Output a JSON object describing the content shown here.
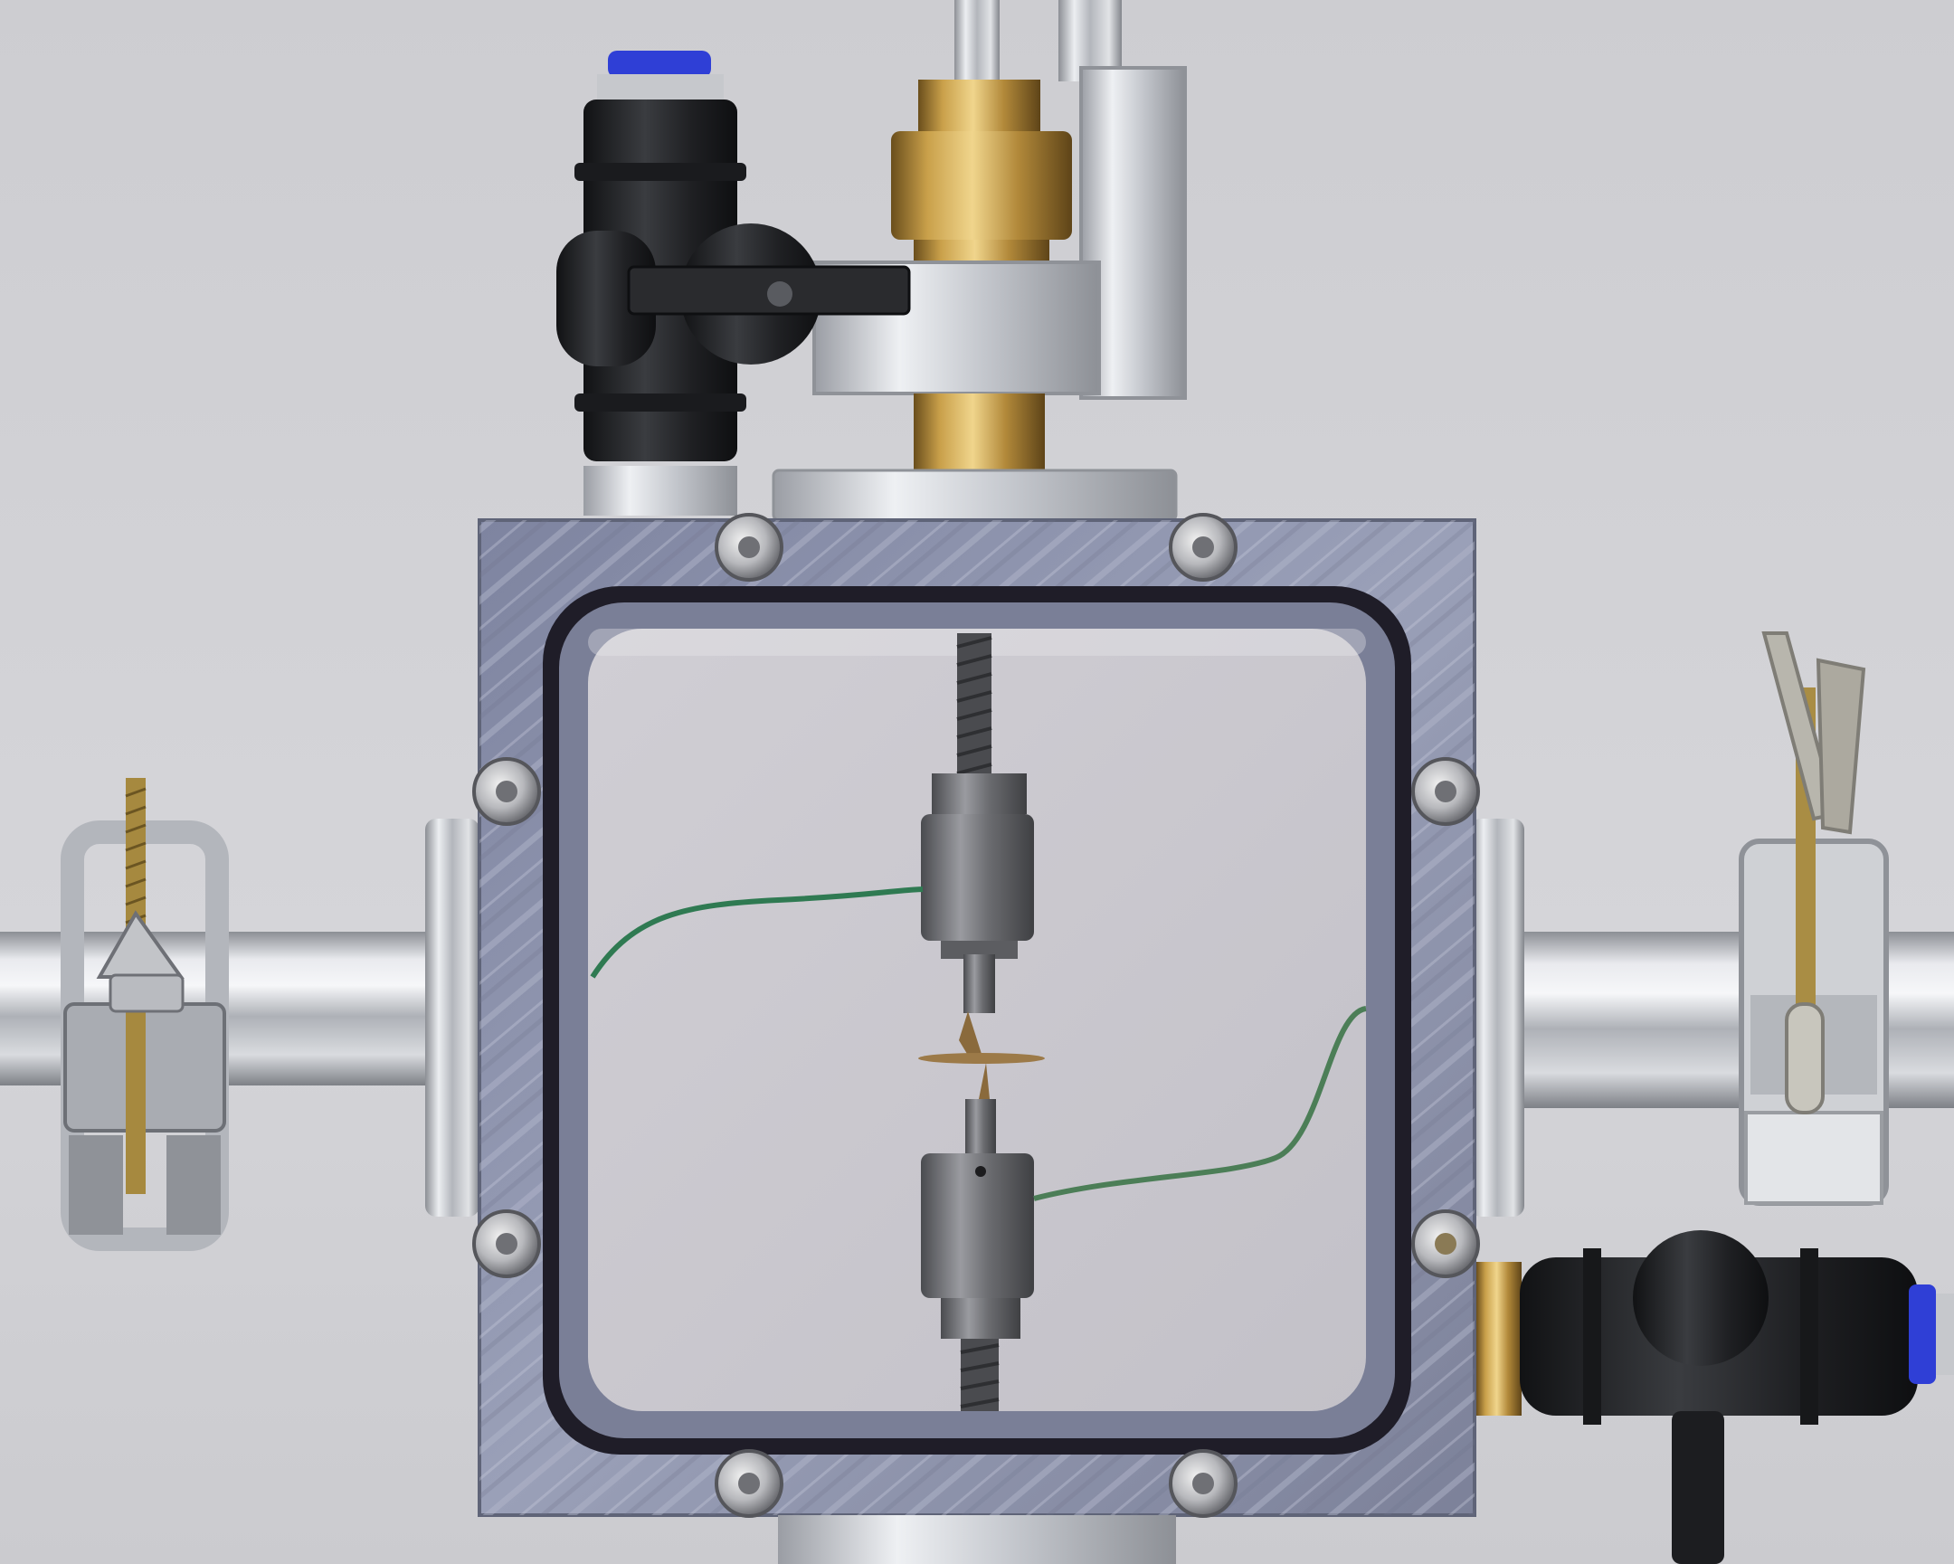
{
  "photo": {
    "subject": "",
    "colors": {
      "background": "#d3d3d7",
      "chamber_plate": "#8a90a8",
      "gasket": "#1f1d28",
      "window": "#cac8ce",
      "brass": "#b08a3a",
      "aluminium": "#c9ccd2",
      "fitting_black": "#202124",
      "fitting_blue_cap": "#2f3fd6",
      "wire_green": "#2f7a52",
      "electrode_steel": "#6f7074"
    },
    "items": [
      {
        "id": "top-fitting-valve",
        "label": ""
      },
      {
        "id": "top-brass-coupling",
        "label": ""
      },
      {
        "id": "chamber",
        "label": ""
      },
      {
        "id": "left-tube-clamp",
        "label": ""
      },
      {
        "id": "right-tube-clamp",
        "label": ""
      },
      {
        "id": "bottom-right-valve",
        "label": ""
      }
    ]
  }
}
